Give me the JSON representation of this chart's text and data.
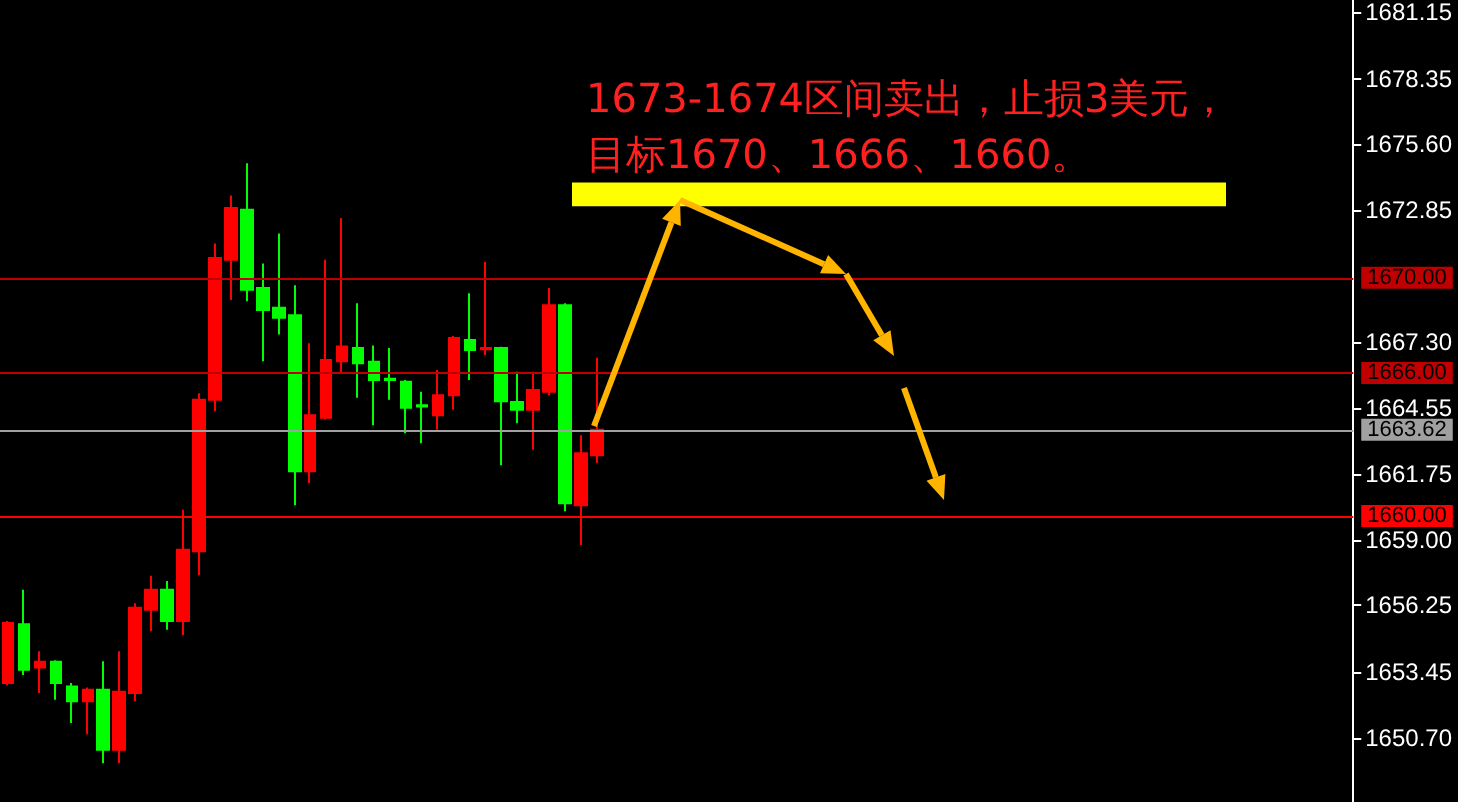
{
  "chart_data": {
    "type": "candlestick",
    "annotations": [
      "1673-1674区间卖出，止损3美元，",
      "目标1670、1666、1660。"
    ],
    "categories": [
      null,
      null,
      null,
      null,
      null,
      null,
      null,
      null,
      null,
      null,
      null,
      null,
      null,
      null,
      null,
      null,
      null,
      null,
      null,
      null,
      null,
      null,
      null,
      null,
      null,
      null,
      null,
      null,
      null,
      null,
      null,
      null,
      null,
      null,
      null,
      null,
      null,
      null,
      null,
      null,
      null,
      null,
      null,
      null,
      null,
      null,
      null,
      null,
      null,
      null,
      null,
      null,
      null,
      null,
      null,
      null,
      null,
      null,
      null,
      null,
      null,
      null,
      null,
      null,
      null,
      null,
      null,
      null,
      null,
      null,
      null,
      null,
      null,
      null,
      null,
      null,
      null,
      null,
      null,
      null,
      null,
      null,
      null,
      null,
      null
    ],
    "ohlc": [
      [
        1652.99,
        1655.6,
        1652.9,
        1655.51
      ],
      [
        1655.46,
        1656.91,
        1653.33,
        1653.55
      ],
      [
        1653.64,
        1654.33,
        1652.57,
        1653.89
      ],
      [
        1653.89,
        1653.95,
        1652.29,
        1652.99
      ],
      [
        1652.85,
        1652.99,
        1651.31,
        1652.23
      ],
      [
        1652.23,
        1652.8,
        1650.84,
        1652.71
      ],
      [
        1652.71,
        1653.91,
        1649.63,
        1650.19
      ],
      [
        1650.19,
        1654.33,
        1649.63,
        1652.63
      ],
      [
        1652.57,
        1656.34,
        1652.23,
        1656.15
      ],
      [
        1656.07,
        1657.49,
        1655.17,
        1656.91
      ],
      [
        1656.91,
        1657.27,
        1655.23,
        1655.59
      ],
      [
        1655.59,
        1660.26,
        1655.0,
        1658.58
      ],
      [
        1658.52,
        1665.15,
        1657.52,
        1664.88
      ],
      [
        1664.88,
        1671.44,
        1664.4,
        1670.83
      ],
      [
        1670.75,
        1673.45,
        1669.07,
        1672.93
      ],
      [
        1672.85,
        1674.8,
        1669.01,
        1669.49
      ],
      [
        1669.57,
        1670.6,
        1666.49,
        1668.65
      ],
      [
        1668.74,
        1671.86,
        1667.62,
        1668.32
      ],
      [
        1668.42,
        1669.68,
        1660.45,
        1661.88
      ],
      [
        1661.88,
        1667.25,
        1661.38,
        1664.23
      ],
      [
        1664.12,
        1670.75,
        1664.05,
        1666.55
      ],
      [
        1666.49,
        1672.51,
        1665.99,
        1667.11
      ],
      [
        1667.05,
        1668.93,
        1664.96,
        1666.41
      ],
      [
        1666.47,
        1667.16,
        1663.81,
        1665.71
      ],
      [
        1665.76,
        1667.05,
        1664.88,
        1665.71
      ],
      [
        1665.63,
        1665.71,
        1663.47,
        1664.54
      ],
      [
        1664.65,
        1665.21,
        1663.05,
        1664.6
      ],
      [
        1664.23,
        1666.13,
        1663.62,
        1665.07
      ],
      [
        1665.07,
        1667.55,
        1664.46,
        1667.47
      ],
      [
        1667.39,
        1669.35,
        1665.71,
        1666.97
      ],
      [
        1667.0,
        1670.66,
        1666.75,
        1667.05
      ],
      [
        1667.05,
        1667.1,
        1662.13,
        1664.82
      ],
      [
        1664.79,
        1666.05,
        1663.89,
        1664.46
      ],
      [
        1664.46,
        1666.05,
        1662.78,
        1665.29
      ],
      [
        1665.21,
        1669.57,
        1665.07,
        1668.84
      ],
      [
        1668.84,
        1668.93,
        1660.2,
        1660.54
      ],
      [
        1660.45,
        1663.39,
        1658.78,
        1662.63
      ],
      [
        1662.55,
        1666.64,
        1662.22,
        1663.62
      ],
      null,
      null,
      null,
      null,
      null,
      null,
      null,
      null,
      null,
      null,
      null,
      null,
      null,
      null,
      null,
      null,
      null,
      null,
      null,
      null,
      null,
      null,
      null,
      null,
      null,
      null,
      null,
      null,
      null,
      null,
      null,
      null,
      null,
      null,
      null,
      null,
      null,
      null,
      null,
      null,
      null,
      null,
      null,
      null,
      null,
      null,
      null
    ],
    "ylim": [
      1648,
      1681.65
    ],
    "yticks": [
      1681.15,
      1678.35,
      {
        "value": 1675.6,
        "label": "1675.60"
      },
      1672.85,
      {
        "value": 1667.3,
        "label": "1667.30"
      },
      1664.55,
      1661.75,
      {
        "value": 1659,
        "label": "1659.00"
      },
      1656.25,
      1653.45,
      {
        "value": 1650.7,
        "label": "1650.70"
      }
    ],
    "ref_lines": [
      {
        "axis": "y",
        "value": 1670,
        "label": "1670.00",
        "color": "#c00000"
      },
      {
        "axis": "y",
        "value": 1666,
        "label": "1666.00",
        "color": "#c00000"
      },
      {
        "axis": "y",
        "value": 1663.62,
        "label": "1663.62",
        "color": "#a0a0a0"
      },
      {
        "axis": "y",
        "value": 1660,
        "label": "1660.00",
        "color": "#ff0000"
      }
    ],
    "bands": [
      {
        "axis": "y",
        "from": 1673,
        "to": 1674,
        "color": "#ffff00"
      }
    ],
    "grid": false
  }
}
